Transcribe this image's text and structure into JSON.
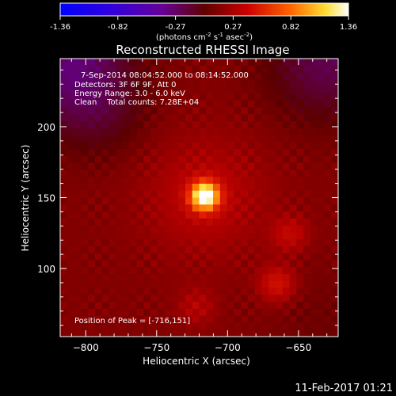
{
  "chart_data": {
    "type": "heatmap",
    "title": "Reconstructed RHESSI Image",
    "xlabel": "Heliocentric X (arcsec)",
    "ylabel": "Heliocentric Y (arcsec)",
    "xlim": [
      -818,
      -622
    ],
    "ylim": [
      52,
      248
    ],
    "x_ticks": [
      -800,
      -750,
      -700,
      -650
    ],
    "y_ticks": [
      100,
      150,
      200
    ],
    "colorbar": {
      "ticks": [
        "-1.36",
        "-0.82",
        "-0.27",
        "0.27",
        "0.82",
        "1.36"
      ],
      "range": [
        -1.36,
        1.36
      ],
      "unit_parts": [
        "(photons cm",
        "-2",
        " s",
        "-1",
        " asec",
        "-2",
        ")"
      ]
    },
    "info_lines": [
      "7-Sep-2014 08:04:52.000 to 08:14:52.000",
      "Detectors: 3F 6F 9F, Att 0",
      "Energy Range: 3.0 - 6.0 keV",
      "Clean    Total counts: 7.28E+04"
    ],
    "peak_label": "Position of Peak = [-716,151]",
    "peak": {
      "x": -716,
      "y": 151,
      "value": 1.36
    },
    "secondary_sources": [
      {
        "x": -665,
        "y": 89,
        "value": 0.42
      },
      {
        "x": -656,
        "y": 124,
        "value": 0.33
      },
      {
        "x": -722,
        "y": 73,
        "value": 0.28
      }
    ],
    "background_value": 0.12,
    "negative_region": "upper-left and upper-right corners",
    "timestamp": "11-Feb-2017 01:21"
  }
}
